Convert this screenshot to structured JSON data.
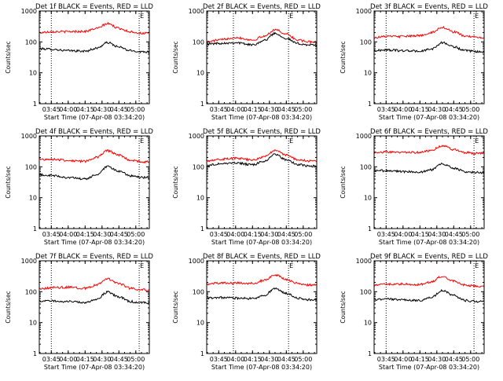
{
  "colors": {
    "events": "#000000",
    "lld": "#ff0000",
    "axes": "#000000",
    "background": "#ffffff"
  },
  "x_axis": {
    "label": "Start Time (07-Apr-08 03:34:20)",
    "tick_labels": [
      "03:45",
      "04:00",
      "04:15",
      "04:30",
      "04:45",
      "05:00"
    ]
  },
  "y_axis": {
    "label": "Counts/sec",
    "tick_labels": [
      "1",
      "10",
      "100",
      "1000"
    ]
  },
  "chart_data": [
    {
      "type": "line",
      "title": "Det 1f BLACK = Events, RED = LLD",
      "xlabel": "Start Time (07-Apr-08 03:34:20)",
      "ylabel": "Counts/sec",
      "y_scale": "log",
      "ylim": [
        1,
        1000
      ],
      "xlim": [
        "03:34:20",
        "05:12:00"
      ],
      "x": [
        "03:35",
        "03:45",
        "04:00",
        "04:15",
        "04:25",
        "04:35",
        "04:45",
        "04:55",
        "05:05",
        "05:12"
      ],
      "series": [
        {
          "name": "Events",
          "color": "#000000",
          "values": [
            60,
            58,
            52,
            50,
            62,
            95,
            68,
            52,
            48,
            48
          ]
        },
        {
          "name": "LLD",
          "color": "#ff0000",
          "values": [
            200,
            215,
            215,
            220,
            270,
            390,
            275,
            215,
            190,
            190
          ]
        }
      ],
      "markers": [
        {
          "x": "03:45",
          "label": ""
        },
        {
          "x": "05:03",
          "label": "E"
        }
      ],
      "grid": false
    },
    {
      "type": "line",
      "title": "Det 2f BLACK = Events, RED = LLD",
      "xlabel": "Start Time (07-Apr-08 03:34:20)",
      "ylabel": "Counts/sec",
      "y_scale": "log",
      "ylim": [
        1,
        1000
      ],
      "xlim": [
        "03:34:20",
        "05:12:00"
      ],
      "x": [
        "03:35",
        "03:45",
        "04:00",
        "04:15",
        "04:25",
        "04:35",
        "04:45",
        "04:55",
        "05:05",
        "05:12"
      ],
      "series": [
        {
          "name": "Events",
          "color": "#000000",
          "values": [
            85,
            90,
            95,
            80,
            110,
            190,
            130,
            88,
            80,
            78
          ]
        },
        {
          "name": "LLD",
          "color": "#ff0000",
          "values": [
            100,
            115,
            140,
            115,
            150,
            250,
            180,
            115,
            100,
            100
          ]
        }
      ],
      "markers": [
        {
          "x": "03:58",
          "label": ""
        },
        {
          "x": "04:47",
          "label": "E"
        }
      ],
      "grid": false
    },
    {
      "type": "line",
      "title": "Det 3f BLACK = Events, RED = LLD",
      "xlabel": "Start Time (07-Apr-08 03:34:20)",
      "ylabel": "Counts/sec",
      "y_scale": "log",
      "ylim": [
        1,
        1000
      ],
      "xlim": [
        "03:34:20",
        "05:12:00"
      ],
      "x": [
        "03:35",
        "03:45",
        "04:00",
        "04:15",
        "04:25",
        "04:35",
        "04:45",
        "04:55",
        "05:05",
        "05:12"
      ],
      "series": [
        {
          "name": "Events",
          "color": "#000000",
          "values": [
            52,
            55,
            52,
            50,
            58,
            95,
            70,
            52,
            48,
            48
          ]
        },
        {
          "name": "LLD",
          "color": "#ff0000",
          "values": [
            140,
            150,
            150,
            160,
            200,
            300,
            210,
            155,
            140,
            140
          ]
        }
      ],
      "markers": [
        {
          "x": "03:45",
          "label": ""
        },
        {
          "x": "05:03",
          "label": "E"
        }
      ],
      "grid": false
    },
    {
      "type": "line",
      "title": "Det 4f BLACK = Events, RED = LLD",
      "xlabel": "Start Time (07-Apr-08 03:34:20)",
      "ylabel": "Counts/sec",
      "y_scale": "log",
      "ylim": [
        1,
        1000
      ],
      "xlim": [
        "03:34:20",
        "05:12:00"
      ],
      "x": [
        "03:35",
        "03:45",
        "04:00",
        "04:15",
        "04:25",
        "04:35",
        "04:45",
        "04:55",
        "05:05",
        "05:12"
      ],
      "series": [
        {
          "name": "Events",
          "color": "#000000",
          "values": [
            55,
            52,
            45,
            40,
            55,
            100,
            72,
            52,
            45,
            45
          ]
        },
        {
          "name": "LLD",
          "color": "#ff0000",
          "values": [
            175,
            175,
            160,
            150,
            200,
            330,
            240,
            165,
            145,
            145
          ]
        }
      ],
      "markers": [
        {
          "x": "03:45",
          "label": ""
        },
        {
          "x": "05:03",
          "label": "E"
        }
      ],
      "grid": false
    },
    {
      "type": "line",
      "title": "Det 5f BLACK = Events, RED = LLD",
      "xlabel": "Start Time (07-Apr-08 03:34:20)",
      "ylabel": "Counts/sec",
      "y_scale": "log",
      "ylim": [
        1,
        1000
      ],
      "xlim": [
        "03:34:20",
        "05:12:00"
      ],
      "x": [
        "03:35",
        "03:45",
        "04:00",
        "04:15",
        "04:25",
        "04:35",
        "04:45",
        "04:55",
        "05:05",
        "05:12"
      ],
      "series": [
        {
          "name": "Events",
          "color": "#000000",
          "values": [
            110,
            125,
            135,
            115,
            150,
            250,
            170,
            120,
            105,
            105
          ]
        },
        {
          "name": "LLD",
          "color": "#ff0000",
          "values": [
            160,
            175,
            190,
            165,
            210,
            340,
            240,
            170,
            155,
            155
          ]
        }
      ],
      "markers": [
        {
          "x": "03:58",
          "label": ""
        },
        {
          "x": "04:47",
          "label": "E"
        }
      ],
      "grid": false
    },
    {
      "type": "line",
      "title": "Det 6f BLACK = Events, RED = LLD",
      "xlabel": "Start Time (07-Apr-08 03:34:20)",
      "ylabel": "Counts/sec",
      "y_scale": "log",
      "ylim": [
        1,
        1000
      ],
      "xlim": [
        "03:34:20",
        "05:12:00"
      ],
      "x": [
        "03:35",
        "03:45",
        "04:00",
        "04:15",
        "04:25",
        "04:35",
        "04:45",
        "04:55",
        "05:05",
        "05:12"
      ],
      "series": [
        {
          "name": "Events",
          "color": "#000000",
          "values": [
            75,
            75,
            70,
            68,
            80,
            125,
            90,
            70,
            65,
            65
          ]
        },
        {
          "name": "LLD",
          "color": "#ff0000",
          "values": [
            290,
            300,
            300,
            290,
            340,
            480,
            360,
            290,
            270,
            270
          ]
        }
      ],
      "markers": [
        {
          "x": "03:45",
          "label": ""
        },
        {
          "x": "05:03",
          "label": "E"
        }
      ],
      "grid": false
    },
    {
      "type": "line",
      "title": "Det 7f BLACK = Events, RED = LLD",
      "xlabel": "Start Time (07-Apr-08 03:34:20)",
      "ylabel": "Counts/sec",
      "y_scale": "log",
      "ylim": [
        1,
        1000
      ],
      "xlim": [
        "03:34:20",
        "05:12:00"
      ],
      "x": [
        "03:35",
        "03:45",
        "04:00",
        "04:15",
        "04:25",
        "04:35",
        "04:45",
        "04:55",
        "05:05",
        "05:12"
      ],
      "series": [
        {
          "name": "Events",
          "color": "#000000",
          "values": [
            50,
            50,
            48,
            45,
            55,
            98,
            68,
            48,
            44,
            44
          ]
        },
        {
          "name": "LLD",
          "color": "#ff0000",
          "values": [
            120,
            135,
            140,
            130,
            165,
            260,
            185,
            130,
            115,
            115
          ]
        }
      ],
      "markers": [
        {
          "x": "03:45",
          "label": ""
        },
        {
          "x": "05:03",
          "label": "E"
        }
      ],
      "grid": false
    },
    {
      "type": "line",
      "title": "Det 8f BLACK = Events, RED = LLD",
      "xlabel": "Start Time (07-Apr-08 03:34:20)",
      "ylabel": "Counts/sec",
      "y_scale": "log",
      "ylim": [
        1,
        1000
      ],
      "xlim": [
        "03:34:20",
        "05:12:00"
      ],
      "x": [
        "03:35",
        "03:45",
        "04:00",
        "04:15",
        "04:25",
        "04:35",
        "04:45",
        "04:55",
        "05:05",
        "05:12"
      ],
      "series": [
        {
          "name": "Events",
          "color": "#000000",
          "values": [
            62,
            65,
            62,
            60,
            75,
            125,
            88,
            62,
            55,
            55
          ]
        },
        {
          "name": "LLD",
          "color": "#ff0000",
          "values": [
            175,
            190,
            190,
            185,
            230,
            350,
            250,
            185,
            165,
            165
          ]
        }
      ],
      "markers": [
        {
          "x": "03:58",
          "label": ""
        },
        {
          "x": "04:47",
          "label": "E"
        }
      ],
      "grid": false
    },
    {
      "type": "line",
      "title": "Det 9f BLACK = Events, RED = LLD",
      "xlabel": "Start Time (07-Apr-08 03:34:20)",
      "ylabel": "Counts/sec",
      "y_scale": "log",
      "ylim": [
        1,
        1000
      ],
      "xlim": [
        "03:34:20",
        "05:12:00"
      ],
      "x": [
        "03:35",
        "03:45",
        "04:00",
        "04:15",
        "04:25",
        "04:35",
        "04:45",
        "04:55",
        "05:05",
        "05:12"
      ],
      "series": [
        {
          "name": "Events",
          "color": "#000000",
          "values": [
            55,
            58,
            55,
            52,
            65,
            110,
            75,
            52,
            48,
            48
          ]
        },
        {
          "name": "LLD",
          "color": "#ff0000",
          "values": [
            160,
            175,
            180,
            170,
            210,
            320,
            220,
            165,
            150,
            150
          ]
        }
      ],
      "markers": [
        {
          "x": "03:45",
          "label": ""
        },
        {
          "x": "05:03",
          "label": "E"
        }
      ],
      "grid": false
    }
  ]
}
